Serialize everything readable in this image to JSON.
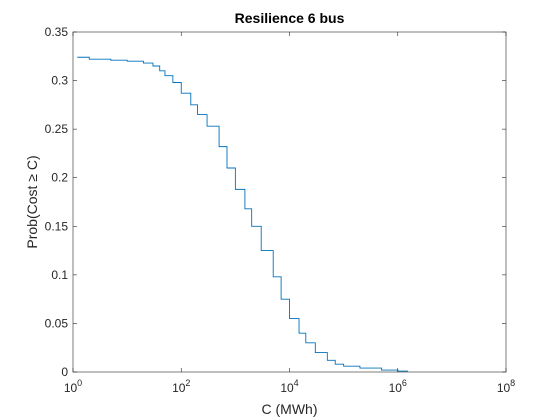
{
  "chart_data": {
    "type": "line",
    "title": "Resilience 6 bus",
    "xlabel": "C (MWh)",
    "ylabel": "Prob(Cost ≥ C)",
    "xscale": "log",
    "xlim": [
      1,
      100000000
    ],
    "ylim": [
      0,
      0.35
    ],
    "xticks": [
      {
        "value": 1,
        "base": "10",
        "exp": "0"
      },
      {
        "value": 100,
        "base": "10",
        "exp": "2"
      },
      {
        "value": 10000,
        "base": "10",
        "exp": "4"
      },
      {
        "value": 1000000,
        "base": "10",
        "exp": "6"
      },
      {
        "value": 100000000,
        "base": "10",
        "exp": "8"
      }
    ],
    "yticks": [
      {
        "value": 0,
        "label": "0"
      },
      {
        "value": 0.05,
        "label": "0.05"
      },
      {
        "value": 0.1,
        "label": "0.1"
      },
      {
        "value": 0.15,
        "label": "0.15"
      },
      {
        "value": 0.2,
        "label": "0.2"
      },
      {
        "value": 0.25,
        "label": "0.25"
      },
      {
        "value": 0.3,
        "label": "0.3"
      },
      {
        "value": 0.35,
        "label": "0.35"
      }
    ],
    "grid": false,
    "box": true,
    "series": [
      {
        "color": "#0072BD",
        "x": [
          1.2,
          2,
          5,
          10,
          20,
          30,
          40,
          50,
          70,
          100,
          150,
          200,
          300,
          500,
          700,
          1000,
          1500,
          2000,
          3000,
          5000,
          7000,
          10000,
          15000,
          20000,
          30000,
          50000,
          70000,
          100000,
          200000,
          500000,
          1000000,
          1500000
        ],
        "y": [
          0.324,
          0.322,
          0.321,
          0.32,
          0.318,
          0.315,
          0.31,
          0.305,
          0.298,
          0.287,
          0.275,
          0.265,
          0.253,
          0.232,
          0.21,
          0.188,
          0.168,
          0.15,
          0.125,
          0.098,
          0.075,
          0.055,
          0.04,
          0.03,
          0.02,
          0.012,
          0.008,
          0.006,
          0.004,
          0.002,
          0.001,
          0.0
        ]
      }
    ]
  }
}
